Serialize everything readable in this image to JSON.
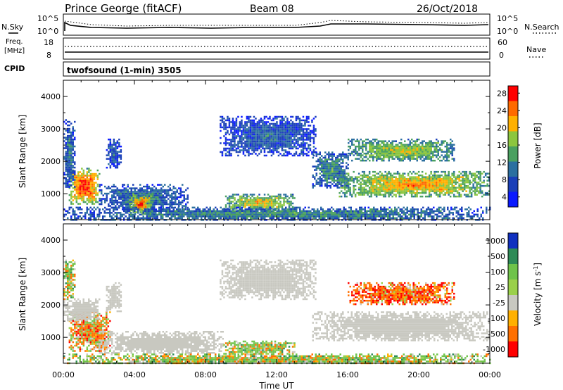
{
  "header": {
    "title": "Prince George (fitACF)",
    "beam": "Beam 08",
    "date": "26/Oct/2018"
  },
  "status_panels": {
    "nsky_label": "N.Sky",
    "nsky_ticks": [
      "10^5",
      "10^0"
    ],
    "nsearch_label": "N.Search",
    "nsearch_ticks": [
      "10^5",
      "10^0"
    ],
    "freq_label_line1": "Freq.",
    "freq_label_line2": "[MHz]",
    "freq_ticks": [
      "18",
      "8"
    ],
    "nave_label": "Nave",
    "nave_ticks": [
      "60",
      "0"
    ],
    "cpid_label": "CPID",
    "program": "twofsound (1-min) 3505"
  },
  "chart_data": [
    {
      "type": "heatmap",
      "title": "",
      "xlabel": "",
      "ylabel": "Slant Range [km]",
      "xlim": [
        0,
        24
      ],
      "ylim": [
        200,
        4500
      ],
      "y_ticks": [
        1000,
        2000,
        3000,
        4000
      ],
      "colorbar": {
        "label": "Power [dB]",
        "ticks": [
          "28",
          "24",
          "20",
          "16",
          "12",
          "8",
          "4"
        ],
        "range": [
          0,
          32
        ],
        "colors": [
          "#0a1aff",
          "#1a3fb8",
          "#2b6fa0",
          "#4aa060",
          "#8cc63f",
          "#ffb000",
          "#ff6a00",
          "#ff0000"
        ]
      },
      "regions": [
        {
          "x0": 0.3,
          "x1": 2.0,
          "y0": 700,
          "y1": 1800,
          "value": 28
        },
        {
          "x0": 0.0,
          "x1": 0.6,
          "y0": 1200,
          "y1": 3300,
          "value": 10
        },
        {
          "x0": 2.4,
          "x1": 3.2,
          "y0": 1800,
          "y1": 2700,
          "value": 8
        },
        {
          "x0": 2.0,
          "x1": 7.0,
          "y0": 500,
          "y1": 1300,
          "value": 10
        },
        {
          "x0": 3.6,
          "x1": 5.0,
          "y0": 400,
          "y1": 1000,
          "value": 24
        },
        {
          "x0": 9.0,
          "x1": 13.0,
          "y0": 500,
          "y1": 1000,
          "value": 20
        },
        {
          "x0": 8.8,
          "x1": 14.2,
          "y0": 2200,
          "y1": 3400,
          "value": 8
        },
        {
          "x0": 14.0,
          "x1": 16.0,
          "y0": 1200,
          "y1": 2300,
          "value": 12
        },
        {
          "x0": 15.5,
          "x1": 24.0,
          "y0": 900,
          "y1": 1700,
          "value": 22
        },
        {
          "x0": 16.0,
          "x1": 22.0,
          "y0": 2000,
          "y1": 2700,
          "value": 18
        },
        {
          "x0": 0.0,
          "x1": 24.0,
          "y0": 200,
          "y1": 600,
          "value": 12
        }
      ]
    },
    {
      "type": "heatmap",
      "title": "",
      "xlabel": "Time UT",
      "ylabel": "Slant Range [km]",
      "xlim": [
        0,
        24
      ],
      "ylim": [
        200,
        4500
      ],
      "y_ticks": [
        1000,
        2000,
        3000,
        4000
      ],
      "x_ticks": [
        "00:00",
        "04:00",
        "08:00",
        "12:00",
        "16:00",
        "20:00",
        "00:00"
      ],
      "colorbar": {
        "label": "Velocity [m s^-1]",
        "ticks": [
          "1000",
          "500",
          "100",
          "25",
          "-25",
          "-100",
          "-500",
          "-1000"
        ],
        "colors": [
          "#1030c0",
          "#2e8b57",
          "#6fc34a",
          "#9ad04a",
          "#c8c8c0",
          "#ffb000",
          "#ff7000",
          "#ff0000"
        ]
      },
      "regions": [
        {
          "x0": 0.0,
          "x1": 0.6,
          "y0": 2200,
          "y1": 3400,
          "value": 100
        },
        {
          "x0": 0.3,
          "x1": 2.6,
          "y0": 600,
          "y1": 1800,
          "value": -100
        },
        {
          "x0": 0.0,
          "x1": 2.0,
          "y0": 1500,
          "y1": 2200,
          "value": 0
        },
        {
          "x0": 2.4,
          "x1": 3.2,
          "y0": 1800,
          "y1": 2700,
          "value": 0
        },
        {
          "x0": 2.0,
          "x1": 9.0,
          "y0": 500,
          "y1": 1200,
          "value": 0
        },
        {
          "x0": 9.0,
          "x1": 13.0,
          "y0": 500,
          "y1": 900,
          "value": 100
        },
        {
          "x0": 8.8,
          "x1": 14.2,
          "y0": 2200,
          "y1": 3400,
          "value": 0
        },
        {
          "x0": 14.0,
          "x1": 24.0,
          "y0": 900,
          "y1": 1800,
          "value": 0
        },
        {
          "x0": 16.0,
          "x1": 22.0,
          "y0": 2000,
          "y1": 2700,
          "value": -200
        },
        {
          "x0": 0.0,
          "x1": 24.0,
          "y0": 200,
          "y1": 500,
          "value": 100
        }
      ]
    }
  ]
}
